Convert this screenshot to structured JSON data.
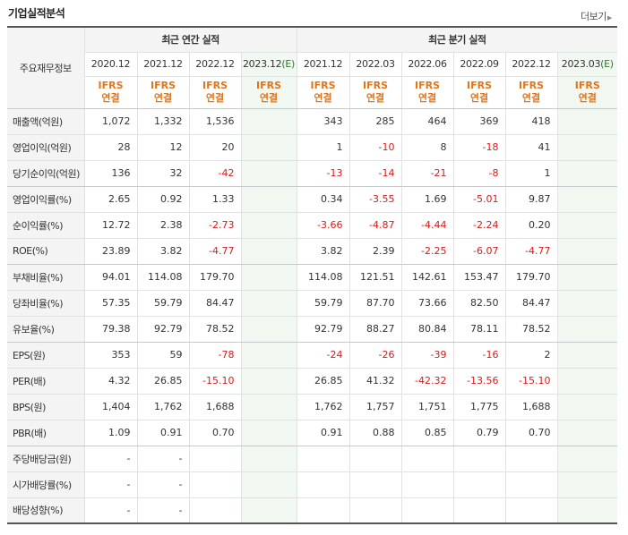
{
  "title": "기업실적분석",
  "more_label": "더보기",
  "header": {
    "corner_label": "주요재무정보",
    "annual_label": "최근 연간 실적",
    "quarterly_label": "최근 분기 실적",
    "ifrs_top": "IFRS",
    "ifrs_bottom": "연결",
    "annual_years": [
      {
        "year": "2020.12",
        "est": ""
      },
      {
        "year": "2021.12",
        "est": ""
      },
      {
        "year": "2022.12",
        "est": ""
      },
      {
        "year": "2023.12",
        "est": "(E)"
      }
    ],
    "quarters": [
      {
        "year": "2021.12",
        "est": ""
      },
      {
        "year": "2022.03",
        "est": ""
      },
      {
        "year": "2022.06",
        "est": ""
      },
      {
        "year": "2022.09",
        "est": ""
      },
      {
        "year": "2022.12",
        "est": ""
      },
      {
        "year": "2023.03",
        "est": "(E)"
      }
    ]
  },
  "rows": [
    {
      "label": "매출액(억원)",
      "values": [
        "1,072",
        "1,332",
        "1,536",
        "",
        "343",
        "285",
        "464",
        "369",
        "418",
        ""
      ]
    },
    {
      "label": "영업이익(억원)",
      "values": [
        "28",
        "12",
        "20",
        "",
        "1",
        "-10",
        "8",
        "-18",
        "41",
        ""
      ]
    },
    {
      "label": "당기순이익(억원)",
      "values": [
        "136",
        "32",
        "-42",
        "",
        "-13",
        "-14",
        "-21",
        "-8",
        "1",
        ""
      ]
    },
    {
      "label": "영업이익률(%)",
      "values": [
        "2.65",
        "0.92",
        "1.33",
        "",
        "0.34",
        "-3.55",
        "1.69",
        "-5.01",
        "9.87",
        ""
      ]
    },
    {
      "label": "순이익률(%)",
      "values": [
        "12.72",
        "2.38",
        "-2.73",
        "",
        "-3.66",
        "-4.87",
        "-4.44",
        "-2.24",
        "0.20",
        ""
      ]
    },
    {
      "label": "ROE(%)",
      "values": [
        "23.89",
        "3.82",
        "-4.77",
        "",
        "3.82",
        "2.39",
        "-2.25",
        "-6.07",
        "-4.77",
        ""
      ]
    },
    {
      "label": "부채비율(%)",
      "values": [
        "94.01",
        "114.08",
        "179.70",
        "",
        "114.08",
        "121.51",
        "142.61",
        "153.47",
        "179.70",
        ""
      ]
    },
    {
      "label": "당좌비율(%)",
      "values": [
        "57.35",
        "59.79",
        "84.47",
        "",
        "59.79",
        "87.70",
        "73.66",
        "82.50",
        "84.47",
        ""
      ]
    },
    {
      "label": "유보율(%)",
      "values": [
        "79.38",
        "92.79",
        "78.52",
        "",
        "92.79",
        "88.27",
        "80.84",
        "78.11",
        "78.52",
        ""
      ]
    },
    {
      "label": "EPS(원)",
      "values": [
        "353",
        "59",
        "-78",
        "",
        "-24",
        "-26",
        "-39",
        "-16",
        "2",
        ""
      ]
    },
    {
      "label": "PER(배)",
      "values": [
        "4.32",
        "26.85",
        "-15.10",
        "",
        "26.85",
        "41.32",
        "-42.32",
        "-13.56",
        "-15.10",
        ""
      ]
    },
    {
      "label": "BPS(원)",
      "values": [
        "1,404",
        "1,762",
        "1,688",
        "",
        "1,762",
        "1,757",
        "1,751",
        "1,775",
        "1,688",
        ""
      ]
    },
    {
      "label": "PBR(배)",
      "values": [
        "1.09",
        "0.91",
        "0.70",
        "",
        "0.91",
        "0.88",
        "0.85",
        "0.79",
        "0.70",
        ""
      ]
    },
    {
      "label": "주당배당금(원)",
      "values": [
        "-",
        "-",
        "",
        "",
        "",
        "",
        "",
        "",
        "",
        ""
      ]
    },
    {
      "label": "시가배당률(%)",
      "values": [
        "-",
        "-",
        "",
        "",
        "",
        "",
        "",
        "",
        "",
        ""
      ]
    },
    {
      "label": "배당성향(%)",
      "values": [
        "-",
        "-",
        "",
        "",
        "",
        "",
        "",
        "",
        "",
        ""
      ]
    }
  ],
  "colors": {
    "negative": "#d81b1b",
    "ifrs": "#e0761b",
    "estimate": "#2c7a2c",
    "estimate_bg": "#f1f8f1",
    "label_bg": "#f4f4f4"
  }
}
